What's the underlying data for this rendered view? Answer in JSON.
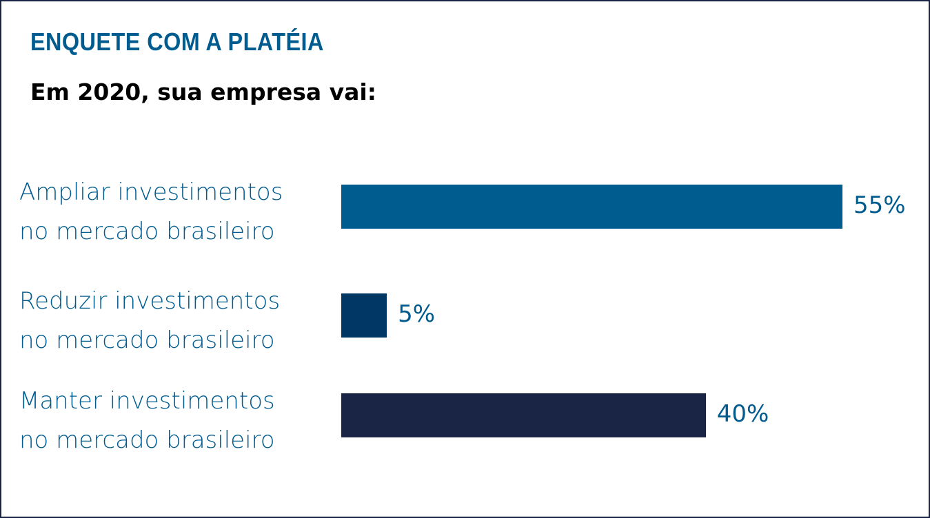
{
  "chart_data": {
    "type": "barh",
    "title": "ENQUETE COM A PLATÉIA",
    "subtitle": "Em 2020, sua empresa vai:",
    "categories": [
      "Ampliar investimentos\nno mercado brasileiro",
      "Reduzir investimentos\nno mercado brasileiro",
      "Manter investimentos\nno mercado brasileiro"
    ],
    "values": [
      55,
      5,
      40
    ],
    "value_labels": [
      "55%",
      "5%",
      "40%"
    ],
    "colors": [
      "#005b8f",
      "#003764",
      "#1a2444"
    ]
  }
}
